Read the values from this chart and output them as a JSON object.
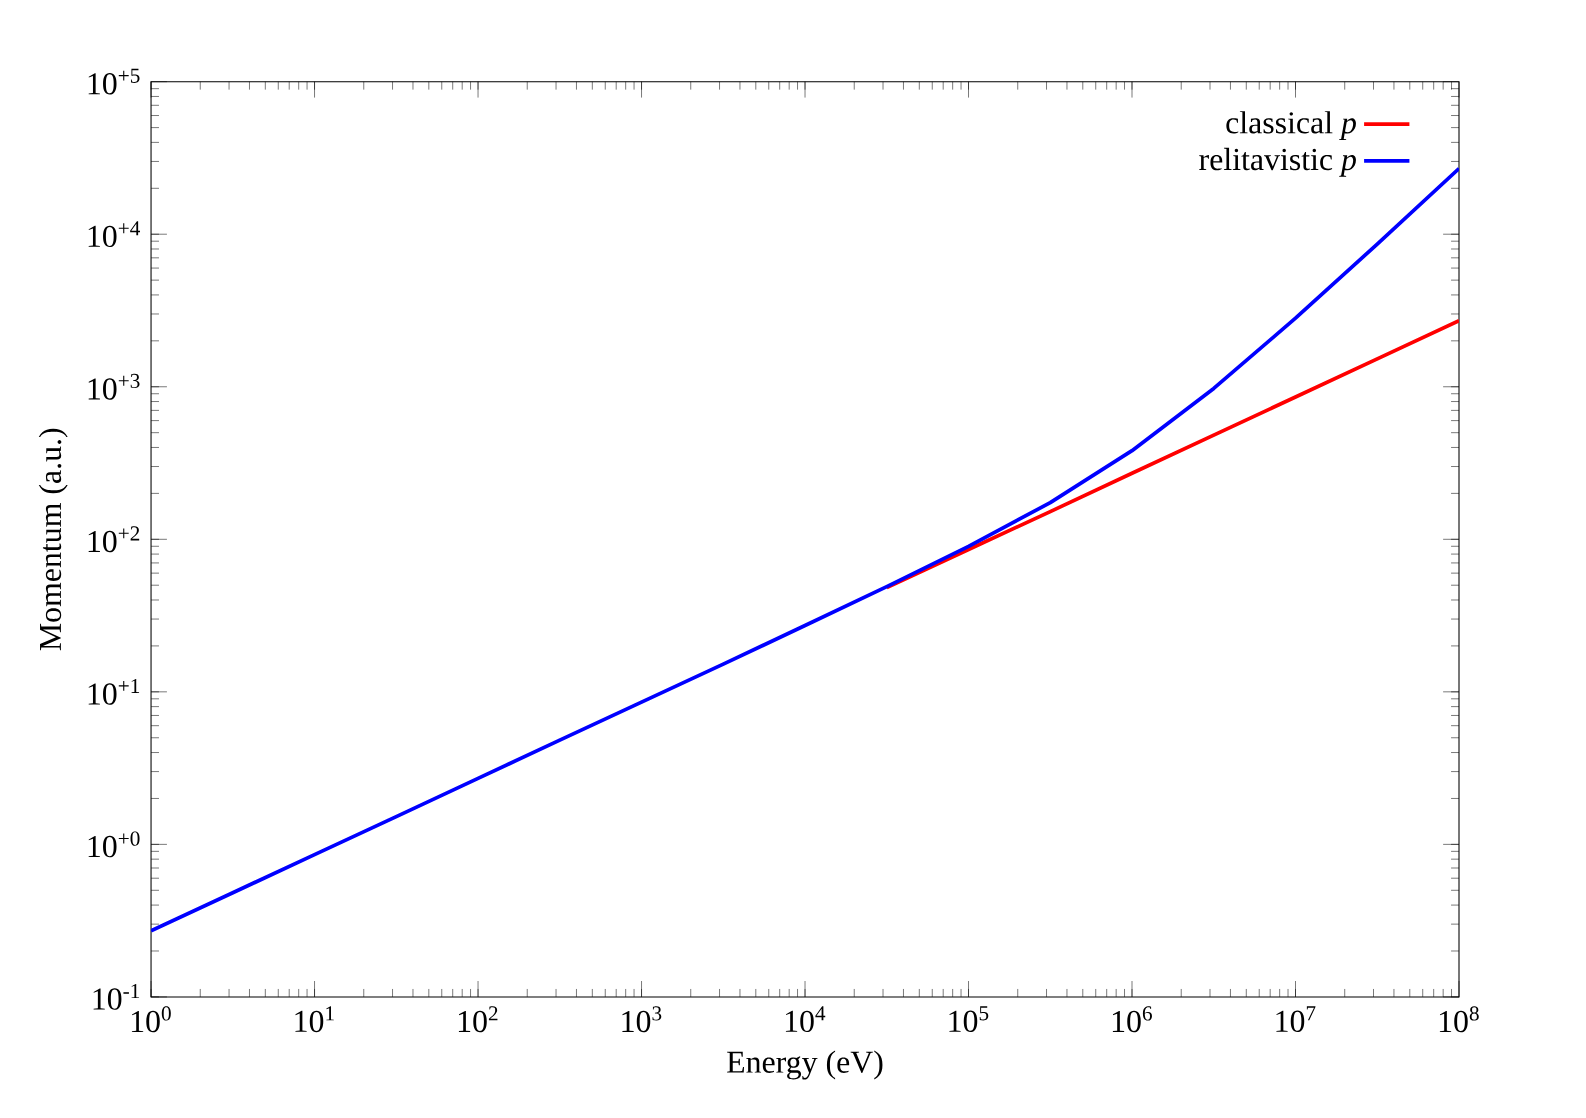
{
  "chart_data": {
    "type": "line",
    "xlabel": "Energy (eV)",
    "ylabel": "Momentum (a.u.)",
    "log": "xy",
    "grid": false,
    "legend": "top right",
    "marker": "none",
    "line_style": "solid",
    "xlim": [
      1,
      100000000
    ],
    "ylim": [
      0.1,
      100000
    ],
    "xticks": [
      {
        "value": 1,
        "label": "10$^{0}$"
      },
      {
        "value": 10,
        "label": "10$^{1}$"
      },
      {
        "value": 100,
        "label": "10$^{2}$"
      },
      {
        "value": 1000,
        "label": "10$^{3}$"
      },
      {
        "value": 10000,
        "label": "10$^{4}$"
      },
      {
        "value": 100000,
        "label": "10$^{5}$"
      },
      {
        "value": 1000000,
        "label": "10$^{6}$"
      },
      {
        "value": 10000000,
        "label": "10$^{7}$"
      },
      {
        "value": 100000000,
        "label": "10$^{8}$"
      }
    ],
    "yticks": [
      {
        "value": 0.1,
        "label": "10$^{-1}$"
      },
      {
        "value": 1,
        "label": "10$^{+0}$"
      },
      {
        "value": 10,
        "label": "10$^{+1}$"
      },
      {
        "value": 100,
        "label": "10$^{+2}$"
      },
      {
        "value": 1000,
        "label": "10$^{+3}$"
      },
      {
        "value": 10000,
        "label": "10$^{+4}$"
      },
      {
        "value": 100000,
        "label": "10$^{+5}$"
      }
    ],
    "x": [
      1,
      3.162,
      10,
      31.62,
      100,
      316.2,
      1000,
      3162,
      10000,
      31623,
      100000,
      316228,
      1000000,
      3162278,
      10000000,
      31622777,
      100000000
    ],
    "series": [
      {
        "name": "classical *p*",
        "color": "#ff0000",
        "values": [
          null,
          null,
          null,
          null,
          null,
          null,
          null,
          null,
          null,
          48.2,
          85.7,
          152,
          271,
          482,
          857,
          1524,
          2711
        ]
      },
      {
        "name": "relitavistic *p*",
        "color": "#0000ff",
        "values": [
          0.271,
          0.482,
          0.857,
          1.52,
          2.71,
          4.82,
          8.57,
          15.2,
          27.2,
          49.0,
          89.8,
          174,
          381,
          975,
          2815,
          8616,
          26955
        ]
      }
    ]
  }
}
